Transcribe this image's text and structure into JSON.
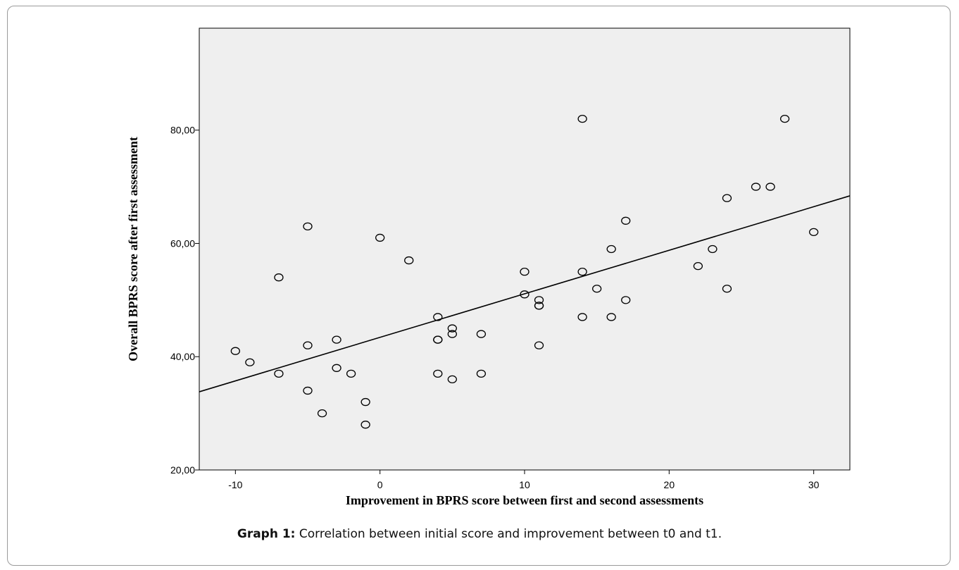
{
  "chart_data": {
    "type": "scatter",
    "xlabel": "Improvement in BPRS score between first and second assessments",
    "ylabel": "Overall BPRS score after first assessment",
    "xlim": [
      -12.5,
      32.5
    ],
    "ylim": [
      20,
      98
    ],
    "x_ticks": [
      -10,
      0,
      10,
      20,
      30
    ],
    "x_tick_labels": [
      "-10",
      "0",
      "10",
      "20",
      "30"
    ],
    "y_ticks": [
      20,
      40,
      60,
      80
    ],
    "y_tick_labels": [
      "20,00",
      "40,00",
      "60,00",
      "80,00"
    ],
    "grid": false,
    "legend": "none",
    "plot_background": "#efefef",
    "points": [
      {
        "x": -10,
        "y": 41
      },
      {
        "x": -9,
        "y": 39
      },
      {
        "x": -7,
        "y": 54
      },
      {
        "x": -7,
        "y": 37
      },
      {
        "x": -5,
        "y": 63
      },
      {
        "x": -5,
        "y": 42
      },
      {
        "x": -5,
        "y": 34
      },
      {
        "x": -4,
        "y": 30
      },
      {
        "x": -3,
        "y": 43
      },
      {
        "x": -3,
        "y": 38
      },
      {
        "x": -2,
        "y": 37
      },
      {
        "x": -1,
        "y": 32
      },
      {
        "x": -1,
        "y": 28
      },
      {
        "x": 0,
        "y": 61
      },
      {
        "x": 2,
        "y": 57
      },
      {
        "x": 4,
        "y": 47
      },
      {
        "x": 4,
        "y": 43
      },
      {
        "x": 4,
        "y": 43
      },
      {
        "x": 4,
        "y": 37
      },
      {
        "x": 5,
        "y": 45
      },
      {
        "x": 5,
        "y": 44
      },
      {
        "x": 5,
        "y": 36
      },
      {
        "x": 7,
        "y": 44
      },
      {
        "x": 7,
        "y": 37
      },
      {
        "x": 10,
        "y": 55
      },
      {
        "x": 10,
        "y": 51
      },
      {
        "x": 11,
        "y": 50
      },
      {
        "x": 11,
        "y": 49
      },
      {
        "x": 11,
        "y": 49
      },
      {
        "x": 11,
        "y": 42
      },
      {
        "x": 14,
        "y": 82
      },
      {
        "x": 14,
        "y": 55
      },
      {
        "x": 14,
        "y": 47
      },
      {
        "x": 15,
        "y": 52
      },
      {
        "x": 16,
        "y": 59
      },
      {
        "x": 16,
        "y": 47
      },
      {
        "x": 17,
        "y": 64
      },
      {
        "x": 17,
        "y": 50
      },
      {
        "x": 22,
        "y": 56
      },
      {
        "x": 23,
        "y": 59
      },
      {
        "x": 24,
        "y": 68
      },
      {
        "x": 24,
        "y": 52
      },
      {
        "x": 26,
        "y": 70
      },
      {
        "x": 27,
        "y": 70
      },
      {
        "x": 28,
        "y": 82
      },
      {
        "x": 30,
        "y": 62
      }
    ],
    "fit_line": {
      "x": [
        -12.5,
        32.5
      ],
      "y": [
        33.8,
        68.4
      ]
    }
  },
  "caption": {
    "label": "Graph 1:",
    "text": " Correlation between initial score and improvement between t0 and t1."
  }
}
